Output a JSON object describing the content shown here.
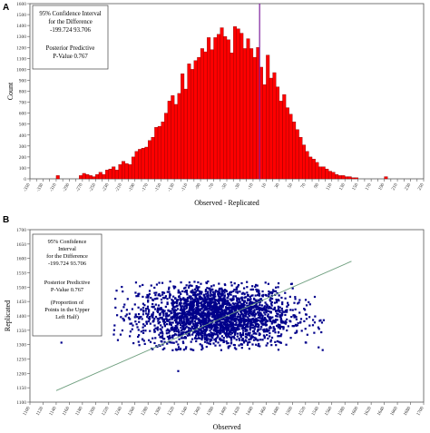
{
  "chart_data": [
    {
      "panel": "A",
      "type": "bar",
      "xlabel": "Observed - Replicated",
      "ylabel": "Count",
      "xlim": [
        -350,
        250
      ],
      "ylim": [
        0,
        1600
      ],
      "x_ticks": [
        -350,
        -340,
        -330,
        -320,
        -310,
        -300,
        -290,
        -280,
        -270,
        -260,
        -250,
        -240,
        -230,
        -220,
        -210,
        -200,
        -190,
        -180,
        -170,
        -160,
        -150,
        -140,
        -130,
        -120,
        -110,
        -100,
        -90,
        -80,
        -70,
        -60,
        -50,
        -40,
        -30,
        -20,
        -10,
        0,
        10,
        20,
        30,
        40,
        50,
        60,
        70,
        80,
        90,
        100,
        110,
        120,
        130,
        140,
        150,
        160,
        170,
        180,
        190,
        200,
        210,
        220,
        230,
        240,
        250
      ],
      "x_tick_labels": [
        "-350",
        "",
        "-330",
        "",
        "-310",
        "",
        "-290",
        "",
        "-270",
        "",
        "-250",
        "",
        "-230",
        "",
        "-210",
        "",
        "-190",
        "",
        "-170",
        "",
        "-150",
        "",
        "-130",
        "",
        "-110",
        "",
        "-90",
        "",
        "-70",
        "",
        "-50",
        "",
        "-30",
        "",
        "-10",
        "",
        "10",
        "",
        "30",
        "",
        "50",
        "",
        "70",
        "",
        "90",
        "",
        "110",
        "",
        "130",
        "",
        "150",
        "",
        "170",
        "",
        "190",
        "",
        "210",
        "",
        "230",
        "",
        "250"
      ],
      "y_ticks": [
        0,
        100,
        200,
        300,
        400,
        500,
        600,
        700,
        800,
        900,
        1000,
        1100,
        1200,
        1300,
        1400,
        1500,
        1600
      ],
      "bin_width": 5,
      "bin_starts": [
        -310,
        -305,
        -300,
        -295,
        -290,
        -285,
        -280,
        -275,
        -270,
        -265,
        -260,
        -255,
        -250,
        -245,
        -240,
        -235,
        -230,
        -225,
        -220,
        -215,
        -210,
        -205,
        -200,
        -195,
        -190,
        -185,
        -180,
        -175,
        -170,
        -165,
        -160,
        -155,
        -150,
        -145,
        -140,
        -135,
        -130,
        -125,
        -120,
        -115,
        -110,
        -105,
        -100,
        -95,
        -90,
        -85,
        -80,
        -75,
        -70,
        -65,
        -60,
        -55,
        -50,
        -45,
        -40,
        -35,
        -30,
        -25,
        -20,
        -15,
        -10,
        -5,
        0,
        5,
        10,
        15,
        20,
        25,
        30,
        35,
        40,
        45,
        50,
        55,
        60,
        65,
        70,
        75,
        80,
        85,
        90,
        95,
        100,
        105,
        110,
        115,
        120,
        125,
        130,
        135,
        140,
        145,
        150,
        155,
        160,
        165,
        170,
        175,
        180,
        185,
        190
      ],
      "counts": [
        30,
        0,
        0,
        0,
        0,
        0,
        0,
        30,
        50,
        40,
        30,
        20,
        40,
        60,
        40,
        80,
        90,
        110,
        80,
        130,
        160,
        140,
        130,
        200,
        250,
        270,
        280,
        290,
        350,
        380,
        470,
        480,
        520,
        600,
        710,
        760,
        680,
        780,
        960,
        820,
        1050,
        1000,
        1080,
        1110,
        1190,
        1160,
        1290,
        1180,
        1290,
        1320,
        1380,
        1300,
        1270,
        1150,
        1390,
        1370,
        1330,
        1190,
        1280,
        1190,
        1110,
        1200,
        1020,
        860,
        1130,
        920,
        970,
        840,
        710,
        770,
        650,
        590,
        520,
        450,
        380,
        310,
        250,
        200,
        180,
        150,
        110,
        110,
        90,
        70,
        60,
        40,
        30,
        30,
        20,
        20,
        10,
        10,
        0,
        0,
        0,
        0,
        0,
        0,
        0,
        0,
        20
      ],
      "reference_line_x": 0,
      "annotation": [
        "95% Confidence Interval",
        "for the Difference",
        "-199.724      93.706",
        "Posterior Predictive",
        "P-Value 0.767"
      ],
      "colors": {
        "bars": "#ff0000",
        "bar_edge": "#7a0000",
        "reference_line": "#7d1e9c",
        "axis": "#555555"
      }
    },
    {
      "panel": "B",
      "type": "scatter",
      "xlabel": "Observed",
      "ylabel": "Replicated",
      "xlim": [
        1100,
        1700
      ],
      "ylim": [
        1100,
        1700
      ],
      "x_ticks": [
        1100,
        1120,
        1140,
        1160,
        1180,
        1200,
        1220,
        1240,
        1260,
        1280,
        1300,
        1320,
        1340,
        1360,
        1380,
        1400,
        1420,
        1440,
        1460,
        1480,
        1500,
        1520,
        1540,
        1560,
        1580,
        1600,
        1620,
        1640,
        1660,
        1680,
        1700
      ],
      "y_ticks": [
        1100,
        1150,
        1200,
        1250,
        1300,
        1350,
        1400,
        1450,
        1500,
        1550,
        1600,
        1650,
        1700
      ],
      "point_distribution": {
        "n": 2600,
        "x_mean": 1382,
        "x_sd": 58,
        "y_mean": 1400,
        "y_sd": 55,
        "x_min": 1222,
        "x_max": 1548,
        "y_min": 1280,
        "y_max": 1520
      },
      "outlier_points": [
        {
          "x": 1148,
          "y": 1307
        },
        {
          "x": 1326,
          "y": 1208
        }
      ],
      "reference_line": {
        "x1": 1140,
        "y1": 1140,
        "x2": 1590,
        "y2": 1590
      },
      "annotation": [
        "95% Confidence",
        "Interval",
        "for the Difference",
        "-199.724      93.706",
        "Posterior Predictive",
        "P-Value 0.767",
        "(Proportion of",
        "Points in the Upper",
        "Left Half)"
      ],
      "colors": {
        "points": "#00008b",
        "reference_line": "#6f9f7f",
        "axis": "#555555"
      }
    }
  ]
}
